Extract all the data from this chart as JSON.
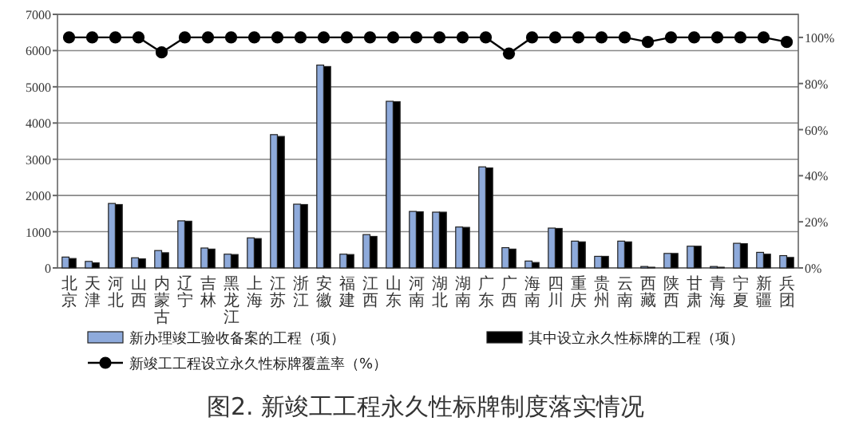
{
  "chart_data": {
    "type": "bar",
    "title": "图2. 新竣工工程永久性标牌制度落实情况",
    "categories": [
      "北京",
      "天津",
      "河北",
      "山西",
      "内蒙古",
      "辽宁",
      "吉林",
      "黑龙江",
      "上海",
      "江苏",
      "浙江",
      "安徽",
      "福建",
      "江西",
      "山东",
      "河南",
      "湖北",
      "湖南",
      "广东",
      "广西",
      "海南",
      "四川",
      "重庆",
      "贵州",
      "云南",
      "西藏",
      "陕西",
      "甘肃",
      "青海",
      "宁夏",
      "新疆",
      "兵团"
    ],
    "series": [
      {
        "name": "新办理竣工验收备案的工程（项）",
        "color": "#8eaadb",
        "values": [
          300,
          180,
          1780,
          280,
          480,
          1300,
          550,
          380,
          830,
          3680,
          1760,
          5600,
          380,
          920,
          4600,
          1560,
          1540,
          1130,
          2790,
          560,
          190,
          1100,
          740,
          320,
          740,
          40,
          400,
          600,
          40,
          680,
          430,
          340
        ]
      },
      {
        "name": "其中设立永久性标牌的工程（项）",
        "color": "#000000",
        "values": [
          260,
          140,
          1750,
          250,
          420,
          1290,
          520,
          370,
          810,
          3630,
          1750,
          5560,
          370,
          870,
          4590,
          1550,
          1540,
          1120,
          2760,
          520,
          150,
          1090,
          720,
          320,
          720,
          20,
          400,
          600,
          20,
          670,
          380,
          290
        ]
      },
      {
        "name": "新竣工工程设立永久性标牌覆盖率（%）",
        "type": "line",
        "axis": "y2",
        "color": "#000000",
        "marker": "circle",
        "values": [
          100,
          100,
          100,
          100,
          93.5,
          100,
          100,
          100,
          100,
          100,
          100,
          100,
          100,
          100,
          100,
          100,
          100,
          100,
          100,
          93,
          100,
          100,
          100,
          100,
          100,
          98,
          100,
          100,
          100,
          100,
          100,
          98
        ]
      }
    ],
    "ylim": [
      0,
      7000
    ],
    "yticks": [
      0,
      1000,
      2000,
      3000,
      4000,
      5000,
      6000,
      7000
    ],
    "y2lim": [
      0,
      110
    ],
    "y2ticks": [
      {
        "value": 0,
        "label": "0%"
      },
      {
        "value": 20,
        "label": "20%"
      },
      {
        "value": 40,
        "label": "40%"
      },
      {
        "value": 60,
        "label": "60%"
      },
      {
        "value": 80,
        "label": "80%"
      },
      {
        "value": 100,
        "label": "100%"
      }
    ],
    "grid": "y",
    "legend": "bottom"
  }
}
